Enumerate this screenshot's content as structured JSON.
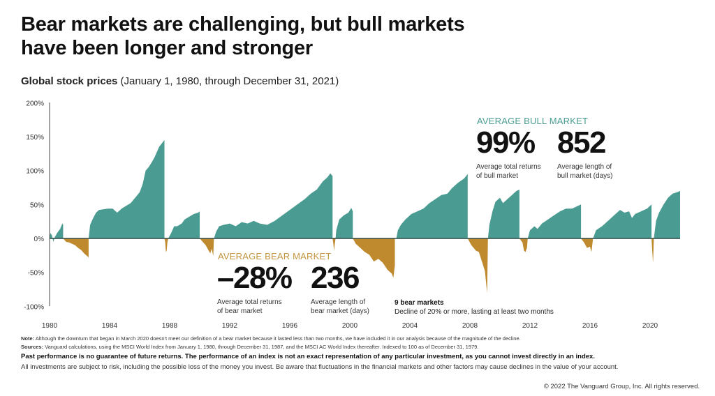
{
  "header": {
    "title_line1": "Bear markets are challenging, but bull markets",
    "title_line2": "have been longer and stronger",
    "subtitle_bold": "Global stock prices",
    "subtitle_rest": " (January 1, 1980, through December 31, 2021)"
  },
  "annotations": {
    "bull": {
      "heading": "AVERAGE BULL MARKET",
      "return_value": "99%",
      "return_label_1": "Average total returns",
      "return_label_2": "of bull market",
      "length_value": "852",
      "length_label_1": "Average length of",
      "length_label_2": "bull market (days)"
    },
    "bear": {
      "heading": "AVERAGE BEAR MARKET",
      "return_value": "–28%",
      "return_label_1": "Average total returns",
      "return_label_2": "of bear market",
      "length_value": "236",
      "length_label_1": "Average length of",
      "length_label_2": "bear market (days)"
    },
    "bear_count_bold": "9 bear markets",
    "bear_count_desc": "Decline of 20% or more, lasting at least two months"
  },
  "footer": {
    "note_label": "Note:",
    "note_text": " Although the downturn that began in March 2020 doesn't meet our definition of a bear market because it lasted less than two months, we have included it in our analysis because of the magnitude of the decline.",
    "sources_label": "Sources:",
    "sources_text": " Vanguard calculations, using the MSCI World Index from January 1, 1980, through December 31, 1987, and the MSCI AC World Index thereafter. Indexed to 100 as of December 31, 1979.",
    "past_performance": "Past performance is no guarantee of future returns. The performance of an index is not an exact representation of any particular investment, as you cannot invest directly in an index.",
    "risk": "All investments are subject to risk, including the possible loss of the money you invest. Be aware that fluctuations in the financial markets and other factors may cause declines in the value of your account.",
    "copyright": "© 2022 The Vanguard Group, Inc. All rights reserved."
  },
  "colors": {
    "bull": "#4a9b91",
    "bear": "#bf8a2e",
    "axis": "#555555",
    "zero_line": "#2f4a48"
  },
  "chart_data": {
    "type": "area",
    "title": "Global stock prices (January 1, 1980, through December 31, 2021)",
    "xlabel": "",
    "ylabel": "",
    "xlim": [
      1980,
      2022
    ],
    "ylim": [
      -100,
      200
    ],
    "grid": false,
    "y_ticks": [
      -100,
      -50,
      0,
      50,
      100,
      150,
      200
    ],
    "y_tick_labels": [
      "-100%",
      "-50%",
      "0%",
      "50%",
      "100%",
      "150%",
      "200%"
    ],
    "x_ticks": [
      1980,
      1984,
      1988,
      1992,
      1996,
      2000,
      2004,
      2008,
      2012,
      2016,
      2020
    ],
    "x_tick_labels": [
      "1980",
      "1984",
      "1988",
      "1992",
      "1996",
      "2000",
      "2004",
      "2008",
      "2012",
      "2016",
      "2020"
    ],
    "series": [
      {
        "name": "Bull market",
        "kind": "bull",
        "points": [
          [
            1980.0,
            0
          ],
          [
            1980.05,
            8
          ],
          [
            1980.15,
            5
          ],
          [
            1980.25,
            -5
          ],
          [
            1980.35,
            2
          ],
          [
            1980.5,
            8
          ],
          [
            1980.7,
            14
          ],
          [
            1980.85,
            22
          ],
          [
            1980.9,
            20
          ]
        ]
      },
      {
        "name": "Bear market",
        "kind": "bear",
        "points": [
          [
            1980.9,
            0
          ],
          [
            1981.1,
            -5
          ],
          [
            1981.3,
            -6
          ],
          [
            1981.5,
            -8
          ],
          [
            1981.7,
            -10
          ],
          [
            1981.9,
            -14
          ],
          [
            1982.1,
            -17
          ],
          [
            1982.3,
            -22
          ],
          [
            1982.5,
            -26
          ],
          [
            1982.6,
            -28
          ]
        ]
      },
      {
        "name": "Bull market",
        "kind": "bull",
        "points": [
          [
            1982.6,
            0
          ],
          [
            1982.7,
            20
          ],
          [
            1982.9,
            30
          ],
          [
            1983.1,
            38
          ],
          [
            1983.3,
            42
          ],
          [
            1983.6,
            43
          ],
          [
            1983.9,
            44
          ],
          [
            1984.2,
            44
          ],
          [
            1984.5,
            38
          ],
          [
            1984.8,
            44
          ],
          [
            1985.1,
            48
          ],
          [
            1985.4,
            52
          ],
          [
            1985.7,
            60
          ],
          [
            1986.0,
            68
          ],
          [
            1986.2,
            80
          ],
          [
            1986.4,
            100
          ],
          [
            1986.6,
            105
          ],
          [
            1986.8,
            112
          ],
          [
            1987.0,
            120
          ],
          [
            1987.3,
            135
          ],
          [
            1987.55,
            142
          ],
          [
            1987.65,
            145
          ]
        ]
      },
      {
        "name": "Bear market",
        "kind": "bear",
        "points": [
          [
            1987.65,
            0
          ],
          [
            1987.7,
            -5
          ],
          [
            1987.75,
            -20
          ],
          [
            1987.8,
            -18
          ],
          [
            1987.85,
            -5
          ],
          [
            1987.9,
            0
          ]
        ]
      },
      {
        "name": "Bull market",
        "kind": "bull",
        "points": [
          [
            1987.9,
            0
          ],
          [
            1988.1,
            8
          ],
          [
            1988.3,
            18
          ],
          [
            1988.5,
            18
          ],
          [
            1988.8,
            22
          ],
          [
            1989.0,
            28
          ],
          [
            1989.3,
            32
          ],
          [
            1989.6,
            36
          ],
          [
            1989.9,
            38
          ],
          [
            1990.0,
            40
          ]
        ]
      },
      {
        "name": "Bear market",
        "kind": "bear",
        "points": [
          [
            1990.0,
            0
          ],
          [
            1990.2,
            -5
          ],
          [
            1990.4,
            -10
          ],
          [
            1990.6,
            -18
          ],
          [
            1990.7,
            -22
          ],
          [
            1990.8,
            -15
          ],
          [
            1990.9,
            -26
          ],
          [
            1990.95,
            0
          ]
        ]
      },
      {
        "name": "Bull market",
        "kind": "bull",
        "points": [
          [
            1990.95,
            0
          ],
          [
            1991.1,
            10
          ],
          [
            1991.3,
            18
          ],
          [
            1991.6,
            20
          ],
          [
            1992.0,
            22
          ],
          [
            1992.4,
            18
          ],
          [
            1992.8,
            24
          ],
          [
            1993.2,
            22
          ],
          [
            1993.6,
            26
          ],
          [
            1994.0,
            22
          ],
          [
            1994.5,
            20
          ],
          [
            1995.0,
            26
          ],
          [
            1995.5,
            34
          ],
          [
            1996.0,
            42
          ],
          [
            1996.5,
            50
          ],
          [
            1997.0,
            58
          ],
          [
            1997.4,
            66
          ],
          [
            1997.8,
            72
          ],
          [
            1998.2,
            84
          ],
          [
            1998.5,
            90
          ],
          [
            1998.7,
            96
          ],
          [
            1998.85,
            92
          ]
        ]
      },
      {
        "name": "Bear market",
        "kind": "bear",
        "points": [
          [
            1998.85,
            0
          ],
          [
            1998.9,
            -8
          ],
          [
            1998.95,
            -18
          ],
          [
            1999.0,
            -8
          ],
          [
            1999.05,
            0
          ]
        ]
      },
      {
        "name": "Bull market",
        "kind": "bull",
        "points": [
          [
            1999.05,
            0
          ],
          [
            1999.1,
            12
          ],
          [
            1999.3,
            28
          ],
          [
            1999.6,
            34
          ],
          [
            1999.9,
            38
          ],
          [
            2000.1,
            45
          ],
          [
            2000.2,
            40
          ]
        ]
      },
      {
        "name": "Bear market",
        "kind": "bear",
        "points": [
          [
            2000.2,
            0
          ],
          [
            2000.4,
            -8
          ],
          [
            2000.7,
            -14
          ],
          [
            2001.0,
            -20
          ],
          [
            2001.3,
            -24
          ],
          [
            2001.6,
            -34
          ],
          [
            2001.9,
            -30
          ],
          [
            2002.2,
            -36
          ],
          [
            2002.5,
            -46
          ],
          [
            2002.8,
            -52
          ],
          [
            2002.9,
            -58
          ],
          [
            2003.0,
            -40
          ]
        ]
      },
      {
        "name": "Bull market",
        "kind": "bull",
        "points": [
          [
            2003.1,
            0
          ],
          [
            2003.2,
            12
          ],
          [
            2003.4,
            20
          ],
          [
            2003.7,
            28
          ],
          [
            2004.1,
            36
          ],
          [
            2004.5,
            40
          ],
          [
            2004.9,
            44
          ],
          [
            2005.3,
            52
          ],
          [
            2005.7,
            58
          ],
          [
            2006.1,
            64
          ],
          [
            2006.5,
            66
          ],
          [
            2006.8,
            74
          ],
          [
            2007.2,
            82
          ],
          [
            2007.6,
            88
          ],
          [
            2007.75,
            92
          ],
          [
            2007.85,
            95
          ]
        ]
      },
      {
        "name": "Bear market",
        "kind": "bear",
        "points": [
          [
            2007.85,
            0
          ],
          [
            2008.1,
            -10
          ],
          [
            2008.4,
            -18
          ],
          [
            2008.6,
            -20
          ],
          [
            2008.8,
            -34
          ],
          [
            2009.0,
            -48
          ],
          [
            2009.1,
            -70
          ],
          [
            2009.15,
            -80
          ],
          [
            2009.2,
            0
          ]
        ]
      },
      {
        "name": "Bull market",
        "kind": "bull",
        "points": [
          [
            2009.2,
            0
          ],
          [
            2009.3,
            20
          ],
          [
            2009.5,
            40
          ],
          [
            2009.7,
            54
          ],
          [
            2010.0,
            60
          ],
          [
            2010.2,
            52
          ],
          [
            2010.5,
            58
          ],
          [
            2010.8,
            64
          ],
          [
            2011.1,
            70
          ],
          [
            2011.3,
            72
          ]
        ]
      },
      {
        "name": "Bear market",
        "kind": "bear",
        "points": [
          [
            2011.3,
            0
          ],
          [
            2011.5,
            -6
          ],
          [
            2011.6,
            -18
          ],
          [
            2011.7,
            -20
          ],
          [
            2011.8,
            -14
          ],
          [
            2011.85,
            0
          ]
        ]
      },
      {
        "name": "Bull market",
        "kind": "bull",
        "points": [
          [
            2011.85,
            0
          ],
          [
            2012.0,
            12
          ],
          [
            2012.3,
            18
          ],
          [
            2012.5,
            14
          ],
          [
            2012.8,
            22
          ],
          [
            2013.2,
            28
          ],
          [
            2013.6,
            34
          ],
          [
            2014.0,
            40
          ],
          [
            2014.4,
            44
          ],
          [
            2014.8,
            44
          ],
          [
            2015.2,
            48
          ],
          [
            2015.4,
            50
          ]
        ]
      },
      {
        "name": "Bear market",
        "kind": "bear",
        "points": [
          [
            2015.4,
            0
          ],
          [
            2015.6,
            -6
          ],
          [
            2015.8,
            -14
          ],
          [
            2016.0,
            -12
          ],
          [
            2016.1,
            -20
          ],
          [
            2016.2,
            0
          ]
        ]
      },
      {
        "name": "Bull market",
        "kind": "bull",
        "points": [
          [
            2016.2,
            0
          ],
          [
            2016.4,
            12
          ],
          [
            2016.8,
            18
          ],
          [
            2017.2,
            26
          ],
          [
            2017.6,
            34
          ],
          [
            2018.0,
            42
          ],
          [
            2018.3,
            38
          ],
          [
            2018.6,
            40
          ],
          [
            2018.8,
            30
          ],
          [
            2019.0,
            36
          ],
          [
            2019.4,
            40
          ],
          [
            2019.8,
            44
          ],
          [
            2020.0,
            48
          ],
          [
            2020.1,
            50
          ]
        ]
      },
      {
        "name": "Bear market",
        "kind": "bear",
        "points": [
          [
            2020.1,
            0
          ],
          [
            2020.15,
            -20
          ],
          [
            2020.2,
            -36
          ],
          [
            2020.25,
            0
          ]
        ]
      },
      {
        "name": "Bull market",
        "kind": "bull",
        "points": [
          [
            2020.25,
            0
          ],
          [
            2020.4,
            26
          ],
          [
            2020.6,
            38
          ],
          [
            2020.9,
            50
          ],
          [
            2021.2,
            60
          ],
          [
            2021.5,
            66
          ],
          [
            2021.8,
            68
          ],
          [
            2022.0,
            70
          ]
        ]
      }
    ],
    "summary": {
      "bull_avg_return_pct": 99,
      "bull_avg_length_days": 852,
      "bear_avg_return_pct": -28,
      "bear_avg_length_days": 236,
      "bear_market_count": 9
    }
  }
}
